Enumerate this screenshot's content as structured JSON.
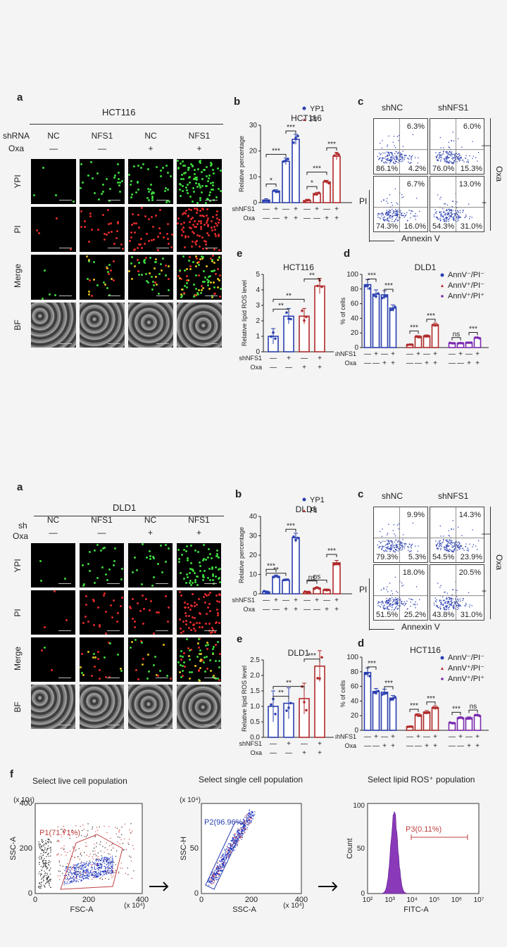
{
  "top": {
    "a": {
      "label": "a",
      "cell_line": "HCT116",
      "row_shrna": "shRNA",
      "row_oxa": "Oxa",
      "columns": [
        {
          "sh": "NC",
          "oxa": "—"
        },
        {
          "sh": "NFS1",
          "oxa": "—"
        },
        {
          "sh": "NC",
          "oxa": "+"
        },
        {
          "sh": "NFS1",
          "oxa": "+"
        }
      ],
      "rows": [
        "YPI",
        "PI",
        "Merge",
        "BF"
      ]
    },
    "b": {
      "label": "b",
      "title": "HCT116",
      "ylabel": "Relative percentage",
      "legend": [
        "YP1",
        "PI"
      ],
      "sig": [
        "*",
        "***",
        "***",
        "*",
        "***",
        "***"
      ]
    },
    "c": {
      "label": "c",
      "cols": [
        "shNC",
        "shNFS1"
      ],
      "oxa": "Oxa",
      "minus": "—",
      "plus": "+",
      "pi": "PI",
      "annexin": "Annexin V",
      "quads": [
        {
          "ur": "6.3%",
          "ll": "86.1%",
          "lr": "4.2%"
        },
        {
          "ur": "6.0%",
          "ll": "76.0%",
          "lr": "15.3%"
        },
        {
          "ur": "6.7%",
          "ll": "74.3%",
          "lr": "16.0%"
        },
        {
          "ur": "13.0%",
          "ll": "54.3%",
          "lr": "31.0%"
        }
      ]
    },
    "e": {
      "label": "e",
      "title": "HCT116",
      "ylabel": "Relative lipid ROS level",
      "sig": [
        "**",
        "**",
        "**"
      ]
    },
    "d": {
      "label": "d",
      "title": "DLD1",
      "ylabel": "% of cells",
      "sig": [
        "***",
        "***",
        "***",
        "***",
        "ns",
        "***"
      ],
      "legend": [
        "AnnV⁻/PI⁻",
        "AnnV⁺/PI⁻",
        "AnnV⁺/PI⁺"
      ]
    }
  },
  "bottom": {
    "a": {
      "label": "a",
      "cell_line": "DLD1",
      "row_shrna": "sh",
      "row_oxa": "Oxa",
      "columns": [
        {
          "sh": "NC",
          "oxa": "—"
        },
        {
          "sh": "NFS1",
          "oxa": "—"
        },
        {
          "sh": "NC",
          "oxa": "+"
        },
        {
          "sh": "NFS1",
          "oxa": "+"
        }
      ],
      "rows": [
        "YPI",
        "PI",
        "Merge",
        "BF"
      ]
    },
    "b": {
      "label": "b",
      "title": "DLD1",
      "ylabel": "Relative percentage",
      "legend": [
        "YP1",
        "PI"
      ],
      "sig": [
        "***",
        "**",
        "***",
        "ns",
        "ns",
        "***"
      ]
    },
    "c": {
      "label": "c",
      "cols": [
        "shNC",
        "shNFS1"
      ],
      "oxa": "Oxa",
      "minus": "—",
      "plus": "+",
      "pi": "PI",
      "annexin": "Annexin V",
      "quads": [
        {
          "ur": "9.9%",
          "ll": "79.3%",
          "lr": "5.3%"
        },
        {
          "ur": "14.3%",
          "ll": "54.5%",
          "lr": "23.9%"
        },
        {
          "ur": "18.0%",
          "ll": "51.5%",
          "lr": "25.2%"
        },
        {
          "ur": "20.5%",
          "ll": "43.8%",
          "lr": "31.0%"
        }
      ]
    },
    "e": {
      "label": "e",
      "title": "DLD1",
      "ylabel": "Relative lipid ROS level",
      "sig": [
        "**",
        "**",
        "***"
      ]
    },
    "d": {
      "label": "d",
      "title": "HCT116",
      "ylabel": "% of cells",
      "sig": [
        "***",
        "***",
        "***",
        "***",
        "***",
        "ns"
      ],
      "legend": [
        "AnnV⁻/PI⁻",
        "AnnV⁺/PI⁻",
        "AnnV⁺/PI⁺"
      ]
    }
  },
  "treatment_rows": {
    "shnfs1": "shNFS1",
    "oxa": "Oxa",
    "pattern_sh": [
      "—",
      "+",
      "—",
      "+"
    ],
    "pattern_oxa": [
      "—",
      "—",
      "+",
      "+"
    ]
  },
  "f": {
    "label": "f",
    "step1": {
      "title": "Select live cell population",
      "gate": "P1(71.71%)",
      "xlabel": "FSC-A",
      "ylabel": "SSC-A",
      "unit": "(x 10⁴)",
      "xticks": [
        "0",
        "200",
        "400"
      ],
      "yticks": [
        "0",
        "200",
        "400"
      ]
    },
    "step2": {
      "title": "Select single cell population",
      "gate": "P2(96.96%)",
      "xlabel": "SSC-A",
      "ylabel": "SSC-H",
      "unit": "(x 10⁴)",
      "xticks": [
        "0",
        "200",
        "400"
      ],
      "yticks": [
        "0",
        "50"
      ]
    },
    "step3": {
      "title": "Select lipid ROS⁺ population",
      "gate": "P3(0.11%)",
      "xlabel": "FITC-A",
      "ylabel": "Count",
      "xticks": [
        "10²",
        "10³",
        "10⁴",
        "10⁵",
        "10⁶",
        "10⁷"
      ],
      "yticks": [
        "0",
        "50",
        "100"
      ]
    }
  },
  "colors": {
    "blue": "#2a3fb0",
    "red": "#b02a2a",
    "purple": "#7a2ab0",
    "gate": "#c04040"
  },
  "chart_data": [
    {
      "type": "bar",
      "title": "HCT116",
      "ylabel": "Relative percentage",
      "ylim": [
        0,
        30
      ],
      "series": [
        {
          "name": "YP1",
          "values": [
            1,
            4.5,
            16,
            24.5
          ]
        },
        {
          "name": "PI",
          "values": [
            0.8,
            3.5,
            8,
            18
          ]
        }
      ]
    },
    {
      "type": "bar",
      "title": "HCT116",
      "ylabel": "Relative lipid ROS level",
      "ylim": [
        0,
        5
      ],
      "series": [
        {
          "values": [
            1,
            2.3,
            2.3,
            4.25
          ]
        }
      ]
    },
    {
      "type": "bar",
      "title": "DLD1",
      "ylabel": "% of cells",
      "ylim": [
        0,
        100
      ],
      "series": [
        {
          "name": "AnnV⁻/PI⁻",
          "values": [
            86,
            73,
            72,
            54
          ]
        },
        {
          "name": "AnnV⁺/PI⁻",
          "values": [
            4,
            15,
            16,
            31
          ]
        },
        {
          "name": "AnnV⁺/PI⁺",
          "values": [
            6,
            6,
            7,
            13
          ]
        }
      ]
    },
    {
      "type": "bar",
      "title": "DLD1",
      "ylabel": "Relative percentage",
      "ylim": [
        0,
        40
      ],
      "series": [
        {
          "name": "YP1",
          "values": [
            1,
            9,
            7,
            29
          ]
        },
        {
          "name": "PI",
          "values": [
            0.8,
            3,
            2,
            16
          ]
        }
      ]
    },
    {
      "type": "bar",
      "title": "DLD1",
      "ylabel": "Relative lipid ROS level",
      "ylim": [
        0,
        2.5
      ],
      "series": [
        {
          "values": [
            1,
            1.1,
            1.25,
            2.3
          ]
        }
      ]
    },
    {
      "type": "bar",
      "title": "HCT116",
      "ylabel": "% of cells",
      "ylim": [
        0,
        100
      ],
      "series": [
        {
          "name": "AnnV⁻/PI⁻",
          "values": [
            79,
            53,
            52,
            44
          ]
        },
        {
          "name": "AnnV⁺/PI⁻",
          "values": [
            5,
            21,
            25,
            31
          ]
        },
        {
          "name": "AnnV⁺/PI⁺",
          "values": [
            10,
            17,
            17,
            20
          ]
        }
      ]
    }
  ]
}
